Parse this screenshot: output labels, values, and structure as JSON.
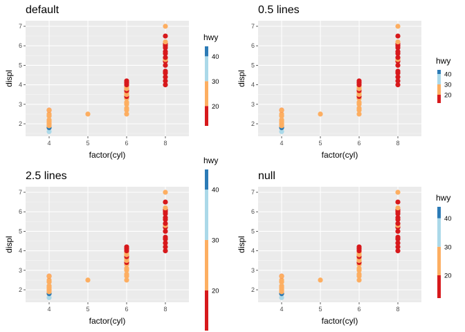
{
  "chart_data": [
    {
      "type": "scatter",
      "title": "default",
      "xlabel": "factor(cyl)",
      "ylabel": "displ",
      "legend": {
        "title": "hwy",
        "placement": "right",
        "size": "default",
        "breaks": [
          20,
          30,
          40
        ]
      },
      "panel_id": "default"
    },
    {
      "type": "scatter",
      "title": "0.5 lines",
      "xlabel": "factor(cyl)",
      "ylabel": "displ",
      "legend": {
        "title": "hwy",
        "placement": "right",
        "size": "0.5 lines",
        "breaks": [
          20,
          30,
          40
        ]
      },
      "panel_id": "half"
    },
    {
      "type": "scatter",
      "title": "2.5 lines",
      "xlabel": "factor(cyl)",
      "ylabel": "displ",
      "legend": {
        "title": "hwy",
        "placement": "right",
        "size": "2.5 lines",
        "breaks": [
          20,
          30,
          40
        ]
      },
      "panel_id": "big"
    },
    {
      "type": "scatter",
      "title": "null",
      "xlabel": "factor(cyl)",
      "ylabel": "displ",
      "legend": {
        "title": "hwy",
        "placement": "right",
        "size": "null",
        "breaks": [
          20,
          30,
          40
        ]
      },
      "panel_id": "null"
    }
  ],
  "shared": {
    "x_categories": [
      "4",
      "5",
      "6",
      "8"
    ],
    "y_ticks": [
      2,
      3,
      4,
      5,
      6,
      7
    ],
    "ylim": [
      1.4,
      7.35
    ],
    "color_bins": [
      {
        "from": 10,
        "to": 20,
        "color": "#d7191c"
      },
      {
        "from": 20,
        "to": 30,
        "color": "#fdae61"
      },
      {
        "from": 30,
        "to": 40,
        "color": "#abd9e9"
      },
      {
        "from": 40,
        "to": 50,
        "color": "#2c7bb6"
      }
    ],
    "hwy_range": [
      12,
      44
    ],
    "points": [
      {
        "cyl": "4",
        "displ": 1.6,
        "hwy": 33
      },
      {
        "cyl": "4",
        "displ": 1.8,
        "hwy": 29
      },
      {
        "cyl": "4",
        "displ": 1.8,
        "hwy": 44
      },
      {
        "cyl": "4",
        "displ": 1.9,
        "hwy": 26
      },
      {
        "cyl": "4",
        "displ": 2.0,
        "hwy": 28
      },
      {
        "cyl": "4",
        "displ": 2.0,
        "hwy": 29
      },
      {
        "cyl": "4",
        "displ": 2.2,
        "hwy": 26
      },
      {
        "cyl": "4",
        "displ": 2.2,
        "hwy": 27
      },
      {
        "cyl": "4",
        "displ": 2.4,
        "hwy": 31
      },
      {
        "cyl": "4",
        "displ": 2.4,
        "hwy": 27
      },
      {
        "cyl": "4",
        "displ": 2.5,
        "hwy": 25
      },
      {
        "cyl": "4",
        "displ": 2.7,
        "hwy": 19
      },
      {
        "cyl": "4",
        "displ": 2.7,
        "hwy": 20
      },
      {
        "cyl": "4",
        "displ": 2.0,
        "hwy": 26
      },
      {
        "cyl": "4",
        "displ": 2.1,
        "hwy": 25
      },
      {
        "cyl": "5",
        "displ": 2.5,
        "hwy": 28
      },
      {
        "cyl": "6",
        "displ": 2.5,
        "hwy": 26
      },
      {
        "cyl": "6",
        "displ": 2.7,
        "hwy": 24
      },
      {
        "cyl": "6",
        "displ": 2.8,
        "hwy": 26
      },
      {
        "cyl": "6",
        "displ": 3.0,
        "hwy": 25
      },
      {
        "cyl": "6",
        "displ": 3.1,
        "hwy": 26
      },
      {
        "cyl": "6",
        "displ": 3.3,
        "hwy": 24
      },
      {
        "cyl": "6",
        "displ": 3.4,
        "hwy": 19
      },
      {
        "cyl": "6",
        "displ": 3.5,
        "hwy": 23
      },
      {
        "cyl": "6",
        "displ": 3.6,
        "hwy": 23
      },
      {
        "cyl": "6",
        "displ": 3.7,
        "hwy": 19
      },
      {
        "cyl": "6",
        "displ": 3.8,
        "hwy": 26
      },
      {
        "cyl": "6",
        "displ": 3.9,
        "hwy": 20
      },
      {
        "cyl": "6",
        "displ": 4.0,
        "hwy": 18
      },
      {
        "cyl": "6",
        "displ": 4.2,
        "hwy": 17
      },
      {
        "cyl": "6",
        "displ": 4.1,
        "hwy": 19
      },
      {
        "cyl": "8",
        "displ": 4.0,
        "hwy": 17
      },
      {
        "cyl": "8",
        "displ": 4.2,
        "hwy": 15
      },
      {
        "cyl": "8",
        "displ": 4.4,
        "hwy": 19
      },
      {
        "cyl": "8",
        "displ": 4.6,
        "hwy": 17
      },
      {
        "cyl": "8",
        "displ": 4.7,
        "hwy": 16
      },
      {
        "cyl": "8",
        "displ": 5.0,
        "hwy": 17
      },
      {
        "cyl": "8",
        "displ": 5.2,
        "hwy": 17
      },
      {
        "cyl": "8",
        "displ": 5.3,
        "hwy": 24
      },
      {
        "cyl": "8",
        "displ": 5.4,
        "hwy": 18
      },
      {
        "cyl": "8",
        "displ": 5.6,
        "hwy": 15
      },
      {
        "cyl": "8",
        "displ": 5.7,
        "hwy": 17
      },
      {
        "cyl": "8",
        "displ": 5.9,
        "hwy": 15
      },
      {
        "cyl": "8",
        "displ": 6.0,
        "hwy": 15
      },
      {
        "cyl": "8",
        "displ": 6.1,
        "hwy": 15
      },
      {
        "cyl": "8",
        "displ": 6.2,
        "hwy": 25
      },
      {
        "cyl": "8",
        "displ": 6.5,
        "hwy": 17
      },
      {
        "cyl": "8",
        "displ": 7.0,
        "hwy": 24
      }
    ]
  }
}
